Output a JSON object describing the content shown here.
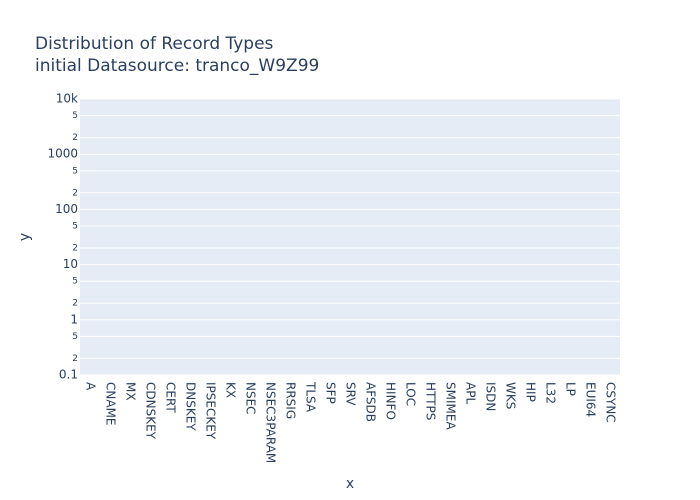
{
  "chart_data": {
    "type": "bar",
    "title": "Distribution of Record Types",
    "subtitle": "initial Datasource: tranco_W9Z99",
    "x_label": "x",
    "y_label": "y",
    "categories": [
      "A",
      "CNAME",
      "MX",
      "CDNSKEY",
      "CERT",
      "DNSKEY",
      "IPSECKEY",
      "KX",
      "NSEC",
      "NSEC3PARAM",
      "RRSIG",
      "TLSA",
      "SFP",
      "SRV",
      "AFSDB",
      "HINFO",
      "LOC",
      "HTTPS",
      "SMIMEA",
      "APL",
      "ISDN",
      "WKS",
      "HIP",
      "L32",
      "LP",
      "EUI64",
      "CSYNC"
    ],
    "log_y": true,
    "ylim": [
      0.1,
      10000
    ],
    "yticks": [
      0.1,
      {
        "value": 0.2,
        "label": "2"
      },
      {
        "value": 0.5,
        "label": "5"
      },
      1,
      {
        "value": 2,
        "label": "2"
      },
      {
        "value": 5,
        "label": "5"
      },
      10,
      {
        "value": 20,
        "label": "2"
      },
      {
        "value": 50,
        "label": "5"
      },
      100,
      {
        "value": 200,
        "label": "2"
      },
      {
        "value": 500,
        "label": "5"
      },
      1000,
      {
        "value": 2000,
        "label": "2"
      },
      {
        "value": 5000,
        "label": "5"
      },
      {
        "value": 10000,
        "label": "10k"
      }
    ],
    "grid": true
  }
}
